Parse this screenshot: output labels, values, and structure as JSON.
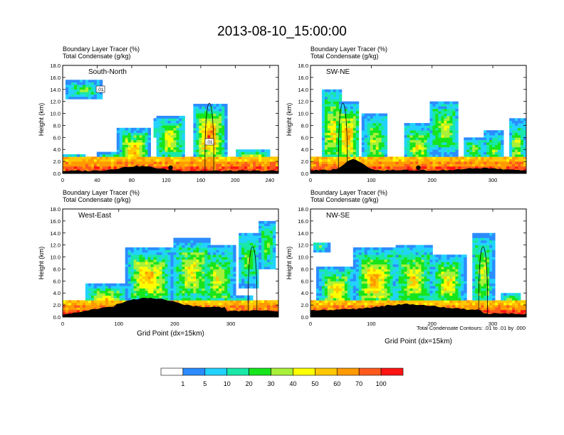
{
  "figure": {
    "title": "2013-08-10_15:00:00",
    "colorbar": {
      "labels": [
        "1",
        "5",
        "10",
        "20",
        "30",
        "40",
        "50",
        "60",
        "70",
        "100"
      ],
      "colors": [
        "#ffffff",
        "#2c8cff",
        "#22d2ff",
        "#19e8a8",
        "#17e51c",
        "#a8f03a",
        "#ffff00",
        "#ffc800",
        "#ff9a00",
        "#ff5a1e",
        "#ff1414"
      ]
    },
    "contour_note": "Total Condensate Contours: .01 to .01 by .000",
    "terrain_color": "#000000"
  },
  "chart_data": [
    {
      "type": "heatmap",
      "subtitle1": "Boundary Layer Tracer   (%)",
      "subtitle2": "Total Condensate   (g/kg)",
      "panel_label": "South-North",
      "ylabel": "Height (km)",
      "xlabel": "",
      "xlim": [
        0,
        250
      ],
      "ylim": [
        0,
        18
      ],
      "xticks": [
        0,
        40,
        80,
        120,
        160,
        200,
        240
      ],
      "yticks": [
        "0.0",
        "2.0",
        "4.0",
        "6.0",
        "8.0",
        "10.0",
        "12.0",
        "14.0",
        "16.0",
        "18.0"
      ],
      "contour_labels": [
        ".01",
        ".01"
      ]
    },
    {
      "type": "heatmap",
      "subtitle1": "Boundary Layer Tracer   (%)",
      "subtitle2": "Total Condensate   (g/kg)",
      "panel_label": "SW-NE",
      "ylabel": "Height (km)",
      "xlabel": "",
      "xlim": [
        0,
        355
      ],
      "ylim": [
        0,
        18
      ],
      "xticks": [
        0,
        100,
        200,
        300
      ],
      "yticks": [
        "0.0",
        "2.0",
        "4.0",
        "6.0",
        "8.0",
        "10.0",
        "12.0",
        "14.0",
        "16.0",
        "18.0"
      ],
      "contour_labels": []
    },
    {
      "type": "heatmap",
      "subtitle1": "Boundary Layer Tracer   (%)",
      "subtitle2": "Total Condensate   (g/kg)",
      "panel_label": "West-East",
      "ylabel": "Height (km)",
      "xlabel": "Grid Point (dx=15km)",
      "xlim": [
        0,
        385
      ],
      "ylim": [
        0,
        18
      ],
      "xticks": [
        0,
        100,
        200,
        300
      ],
      "yticks": [
        "0.0",
        "2.0",
        "4.0",
        "6.0",
        "8.0",
        "10.0",
        "12.0",
        "14.0",
        "16.0",
        "18.0"
      ],
      "contour_labels": []
    },
    {
      "type": "heatmap",
      "subtitle1": "Boundary Layer Tracer   (%)",
      "subtitle2": "Total Condensate   (g/kg)",
      "panel_label": "NW-SE",
      "ylabel": "Height (km)",
      "xlabel": "Grid Point (dx=15km)",
      "xlim": [
        0,
        355
      ],
      "ylim": [
        0,
        18
      ],
      "xticks": [
        0,
        100,
        200,
        300
      ],
      "yticks": [
        "0.0",
        "2.0",
        "4.0",
        "6.0",
        "8.0",
        "10.0",
        "12.0",
        "14.0",
        "16.0",
        "18.0"
      ],
      "contour_labels": []
    }
  ]
}
